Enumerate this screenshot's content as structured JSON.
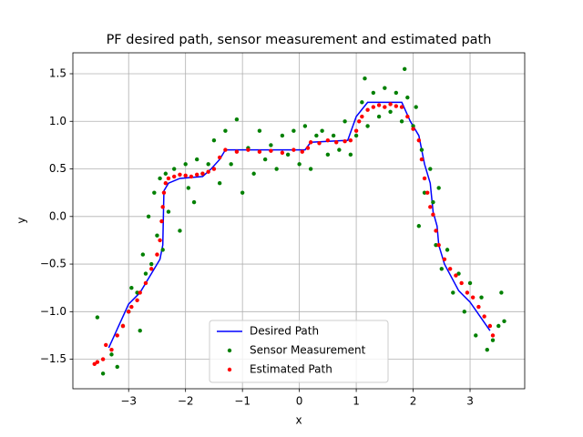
{
  "chart_data": {
    "type": "scatter",
    "title": "PF desired path, sensor measurement and estimated path",
    "x_label": "x",
    "y_label": "y",
    "xlim": [
      -3.98,
      3.96
    ],
    "ylim": [
      -1.81,
      1.72
    ],
    "xticks": [
      {
        "value": -3,
        "label": "−3"
      },
      {
        "value": -2,
        "label": "−2"
      },
      {
        "value": -1,
        "label": "−1"
      },
      0,
      1,
      2,
      3
    ],
    "yticks": [
      {
        "value": -1.5,
        "label": "−1.5"
      },
      {
        "value": -1.0,
        "label": "−1.0"
      },
      {
        "value": -0.5,
        "label": "−0.5"
      },
      {
        "value": 0,
        "label": "0.0"
      },
      {
        "value": 0.5,
        "label": "0.5"
      },
      {
        "value": 1.0,
        "label": "1.0"
      },
      {
        "value": 1.5,
        "label": "1.5"
      }
    ],
    "grid": true,
    "legend": "lower center",
    "series": [
      {
        "name": "Desired Path",
        "type": "line",
        "color": "#0000ff",
        "x": [
          -3.35,
          -3.0,
          -2.8,
          -2.45,
          -2.4,
          -2.38,
          -2.3,
          -2.1,
          -1.7,
          -1.55,
          -1.4,
          -1.3,
          -0.2,
          0.1,
          0.2,
          0.85,
          1.0,
          1.2,
          1.8,
          1.95,
          2.1,
          2.2,
          2.3,
          2.35,
          2.42,
          2.45,
          2.55,
          2.8,
          3.0,
          3.35
        ],
        "values": [
          -1.38,
          -0.92,
          -0.8,
          -0.45,
          -0.3,
          0.27,
          0.35,
          0.4,
          0.42,
          0.5,
          0.6,
          0.7,
          0.7,
          0.7,
          0.78,
          0.8,
          1.05,
          1.2,
          1.2,
          1.0,
          0.85,
          0.55,
          0.35,
          0.05,
          -0.1,
          -0.3,
          -0.5,
          -0.78,
          -0.9,
          -1.2
        ]
      },
      {
        "name": "Sensor Measurement",
        "type": "scatter",
        "color": "#008000",
        "x": [
          -3.55,
          -3.45,
          -3.3,
          -3.2,
          -3.1,
          -3.0,
          -2.95,
          -2.85,
          -2.8,
          -2.75,
          -2.7,
          -2.65,
          -2.6,
          -2.55,
          -2.5,
          -2.45,
          -2.4,
          -2.35,
          -2.3,
          -2.2,
          -2.1,
          -2.0,
          -1.95,
          -1.85,
          -1.8,
          -1.7,
          -1.6,
          -1.5,
          -1.4,
          -1.3,
          -1.2,
          -1.1,
          -1.0,
          -0.9,
          -0.8,
          -0.7,
          -0.6,
          -0.5,
          -0.4,
          -0.3,
          -0.2,
          -0.1,
          0.0,
          0.1,
          0.2,
          0.3,
          0.4,
          0.5,
          0.6,
          0.7,
          0.8,
          0.9,
          1.0,
          1.1,
          1.15,
          1.2,
          1.3,
          1.4,
          1.5,
          1.6,
          1.7,
          1.8,
          1.85,
          1.9,
          2.0,
          2.05,
          2.1,
          2.15,
          2.2,
          2.3,
          2.35,
          2.4,
          2.45,
          2.5,
          2.6,
          2.7,
          2.8,
          2.9,
          3.0,
          3.1,
          3.2,
          3.3,
          3.4,
          3.5,
          3.6,
          3.55
        ],
        "values": [
          -1.06,
          -1.65,
          -1.45,
          -1.58,
          -1.15,
          -1.0,
          -0.75,
          -0.8,
          -1.2,
          -0.4,
          -0.6,
          0.0,
          -0.5,
          0.25,
          -0.2,
          0.4,
          -0.35,
          0.45,
          0.05,
          0.5,
          -0.15,
          0.55,
          0.3,
          0.15,
          0.6,
          0.45,
          0.55,
          0.8,
          0.35,
          0.9,
          0.55,
          1.02,
          0.25,
          0.72,
          0.45,
          0.9,
          0.6,
          0.75,
          0.5,
          0.85,
          0.65,
          0.9,
          0.55,
          0.95,
          0.5,
          0.85,
          0.9,
          0.65,
          0.85,
          0.7,
          1.0,
          0.65,
          0.85,
          1.2,
          1.45,
          0.95,
          1.3,
          1.05,
          1.35,
          1.1,
          1.3,
          1.0,
          1.55,
          1.25,
          0.95,
          1.15,
          -0.1,
          0.7,
          0.25,
          0.5,
          0.15,
          -0.3,
          0.3,
          -0.55,
          -0.35,
          -0.8,
          -0.6,
          -1.0,
          -0.7,
          -1.25,
          -0.85,
          -1.4,
          -1.3,
          -1.15,
          -1.1,
          -0.8
        ]
      },
      {
        "name": "Estimated Path",
        "type": "scatter",
        "color": "#ff0000",
        "x": [
          -3.6,
          -3.55,
          -3.45,
          -3.4,
          -3.3,
          -3.2,
          -3.1,
          -3.0,
          -2.95,
          -2.85,
          -2.8,
          -2.7,
          -2.6,
          -2.5,
          -2.45,
          -2.42,
          -2.4,
          -2.38,
          -2.35,
          -2.3,
          -2.2,
          -2.1,
          -2.0,
          -1.9,
          -1.8,
          -1.7,
          -1.6,
          -1.5,
          -1.4,
          -1.3,
          -1.1,
          -0.9,
          -0.7,
          -0.5,
          -0.3,
          -0.1,
          0.05,
          0.15,
          0.2,
          0.35,
          0.5,
          0.65,
          0.8,
          0.9,
          1.0,
          1.05,
          1.1,
          1.2,
          1.3,
          1.4,
          1.5,
          1.6,
          1.7,
          1.8,
          1.9,
          2.0,
          2.1,
          2.15,
          2.2,
          2.25,
          2.3,
          2.35,
          2.4,
          2.45,
          2.55,
          2.65,
          2.75,
          2.85,
          2.95,
          3.05,
          3.15,
          3.25,
          3.35,
          3.4
        ],
        "values": [
          -1.55,
          -1.53,
          -1.5,
          -1.35,
          -1.4,
          -1.25,
          -1.15,
          -1.0,
          -0.95,
          -0.88,
          -0.8,
          -0.7,
          -0.55,
          -0.4,
          -0.25,
          -0.05,
          0.1,
          0.25,
          0.35,
          0.4,
          0.42,
          0.44,
          0.43,
          0.42,
          0.44,
          0.45,
          0.47,
          0.5,
          0.62,
          0.7,
          0.68,
          0.7,
          0.68,
          0.69,
          0.67,
          0.7,
          0.68,
          0.72,
          0.78,
          0.77,
          0.8,
          0.78,
          0.79,
          0.8,
          0.9,
          1.0,
          1.05,
          1.12,
          1.15,
          1.17,
          1.15,
          1.18,
          1.16,
          1.15,
          1.05,
          0.92,
          0.8,
          0.6,
          0.4,
          0.25,
          0.1,
          0.02,
          -0.15,
          -0.3,
          -0.45,
          -0.55,
          -0.62,
          -0.7,
          -0.8,
          -0.85,
          -0.95,
          -1.05,
          -1.15,
          -1.25
        ]
      }
    ]
  }
}
